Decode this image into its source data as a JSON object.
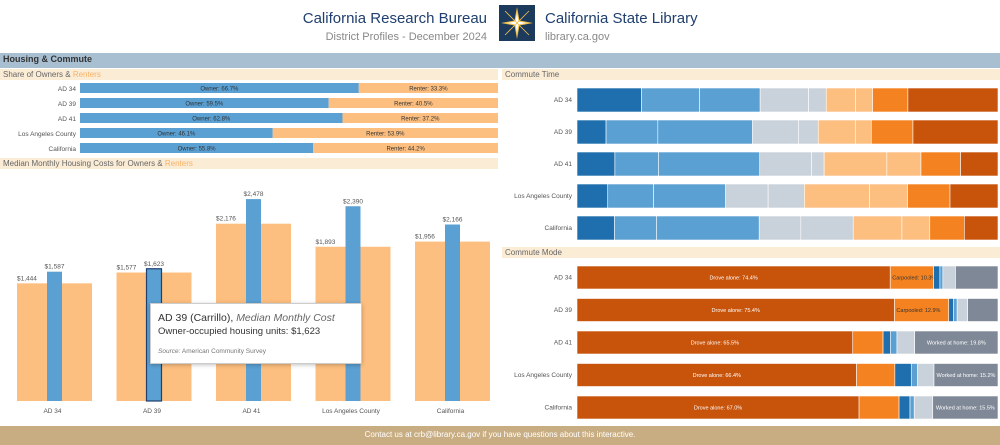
{
  "header": {
    "left_title": "California Research Bureau",
    "left_subtitle": "District Profiles - December 2024",
    "right_title": "California State Library",
    "right_subtitle": "library.ca.gov",
    "logo_icon": "star-compass-logo"
  },
  "section": {
    "title": "Housing & Commute"
  },
  "owners_renters": {
    "title_prefix": "Share of Owners & ",
    "title_suffix": "Renters",
    "colors": {
      "owner": "#5aa0d3",
      "renter": "#fdbf7f"
    }
  },
  "housing_costs": {
    "title_prefix": "Median Monthly Housing Costs for Owners & ",
    "title_suffix": "Renters"
  },
  "commute_time": {
    "title": "Commute Time"
  },
  "commute_mode": {
    "title": "Commute Mode"
  },
  "tooltip": {
    "heading": "AD 39 (Carrillo),",
    "heading_italic": "Median Monthly Cost",
    "line": "Owner-occupied housing units: $1,623",
    "source_label": "Source:",
    "source_value": "American Community Survey"
  },
  "footer": {
    "text": "Contact us at crb@library.ca.gov if you have questions about this interactive."
  },
  "chart_data": [
    {
      "id": "owners_renters",
      "type": "bar",
      "orientation": "horizontal",
      "stacked": true,
      "categories": [
        "AD 34",
        "AD 39",
        "AD 41",
        "Los Angeles County",
        "California"
      ],
      "series": [
        {
          "name": "Owner",
          "values": [
            66.7,
            59.5,
            62.8,
            46.1,
            55.8
          ],
          "labels": [
            "Owner: 66.7%",
            "Owner: 59.5%",
            "Owner: 62.8%",
            "Owner: 46.1%",
            "Owner: 55.8%"
          ]
        },
        {
          "name": "Renter",
          "values": [
            33.3,
            40.5,
            37.2,
            53.9,
            44.2
          ],
          "labels": [
            "Renter: 33.3%",
            "Renter: 40.5%",
            "Renter: 37.2%",
            "Renter: 53.9%",
            "Renter: 44.2%"
          ]
        }
      ]
    },
    {
      "id": "housing_costs",
      "type": "bar",
      "orientation": "vertical",
      "categories": [
        "AD 34",
        "AD 39",
        "AD 41",
        "Los Angeles County",
        "California"
      ],
      "ylim": [
        0,
        2700
      ],
      "series": [
        {
          "role": "renter",
          "values": [
            1444,
            1577,
            2176,
            1893,
            1956
          ],
          "labels": [
            "$1,444",
            "$1,577",
            "$2,176",
            "$1,893",
            "$1,956"
          ]
        },
        {
          "role": "owner",
          "values": [
            1587,
            1623,
            2478,
            2390,
            2166
          ],
          "labels": [
            "$1,587",
            "$1,623",
            "$2,478",
            "$2,390",
            "$2,166"
          ]
        }
      ],
      "highlighted": "AD 39"
    },
    {
      "id": "commute_time",
      "type": "bar",
      "orientation": "horizontal",
      "stacked": true,
      "categories": [
        "AD 34",
        "AD 39",
        "AD 41",
        "Los Angeles County",
        "California"
      ],
      "segment_colors": [
        "#1f6fae",
        "#5aa0d3",
        "#5aa0d3",
        "#c9d1da",
        "#c9d1da",
        "#fdbf7f",
        "#fdbf7f",
        "#f58220",
        "#c8530a"
      ],
      "rows": [
        [
          15.3,
          13.8,
          14.4,
          11.5,
          4.2,
          7.0,
          4.0,
          8.4,
          21.4
        ],
        [
          6.9,
          12.3,
          22.5,
          10.9,
          4.7,
          8.8,
          3.8,
          9.9,
          20.2
        ],
        [
          9.0,
          10.4,
          24.0,
          12.3,
          3.0,
          14.9,
          8.1,
          9.4,
          8.9
        ],
        [
          7.3,
          10.9,
          17.1,
          10.1,
          8.6,
          15.5,
          9.0,
          10.1,
          11.4
        ],
        [
          9.0,
          10.1,
          24.7,
          10.0,
          12.6,
          11.7,
          6.7,
          8.3,
          8.1
        ]
      ]
    },
    {
      "id": "commute_mode",
      "type": "bar",
      "orientation": "horizontal",
      "stacked": true,
      "categories": [
        "AD 34",
        "AD 39",
        "AD 41",
        "Los Angeles County",
        "California"
      ],
      "segment_colors": [
        "#c8530a",
        "#f58220",
        "#1f6fae",
        "#5aa0d3",
        "#c9d1da",
        "#7f8896"
      ],
      "rows": [
        {
          "values": [
            74.4,
            10.3,
            1.5,
            0.7,
            3.0,
            10.1
          ],
          "labels": [
            "Drove alone: 74.4%",
            "Carpooled: 10.3%",
            "",
            "",
            "",
            ""
          ]
        },
        {
          "values": [
            75.4,
            12.9,
            1.1,
            0.9,
            2.5,
            7.2
          ],
          "labels": [
            "Drove alone: 75.4%",
            "Carpooled: 12.9%",
            "",
            "",
            "",
            ""
          ]
        },
        {
          "values": [
            65.5,
            7.2,
            1.8,
            1.5,
            4.2,
            19.8
          ],
          "labels": [
            "Drove alone: 65.5%",
            "",
            "",
            "",
            "",
            "Worked at home: 19.8%"
          ]
        },
        {
          "values": [
            66.4,
            9.1,
            3.9,
            1.5,
            3.9,
            15.2
          ],
          "labels": [
            "Drove alone: 66.4%",
            "",
            "",
            "",
            "",
            "Worked at home: 15.2%"
          ]
        },
        {
          "values": [
            67.0,
            9.5,
            2.6,
            1.0,
            4.4,
            15.5
          ],
          "labels": [
            "Drove alone: 67.0%",
            "",
            "",
            "",
            "",
            "Worked at home: 15.5%"
          ]
        }
      ]
    }
  ]
}
